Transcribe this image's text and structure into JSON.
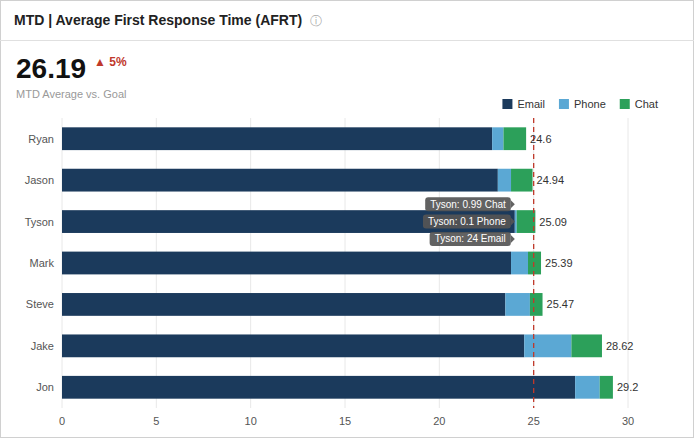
{
  "chart_data": {
    "type": "bar",
    "orientation": "horizontal",
    "stacked": true,
    "title": "MTD | Average First Response Time (AFRT)",
    "title_icon": "ⓘ",
    "kpi_value": "26.19",
    "kpi_change": " ▲ 5%",
    "kpi_change_color": "#c0392b",
    "subtitle": "MTD Average vs. Goal",
    "categories": [
      "Ryan",
      "Jason",
      "Tyson",
      "Mark",
      "Steve",
      "Jake",
      "Jon"
    ],
    "series": [
      {
        "name": "Email",
        "color": "#1b3a5c",
        "values": [
          22.8,
          23.1,
          24.0,
          23.8,
          23.5,
          24.5,
          27.2
        ]
      },
      {
        "name": "Phone",
        "color": "#5ba8d4",
        "values": [
          0.6,
          0.7,
          0.1,
          0.9,
          1.3,
          2.5,
          1.3
        ]
      },
      {
        "name": "Chat",
        "color": "#2ca05a",
        "values": [
          1.2,
          1.14,
          0.99,
          0.69,
          0.67,
          1.62,
          0.7
        ]
      }
    ],
    "totals": [
      24.6,
      24.94,
      25.09,
      25.39,
      25.47,
      28.62,
      29.2
    ],
    "goal_line": {
      "value": 25,
      "color": "#c0392b"
    },
    "annotations": [
      {
        "text": "Tyson: 0.99 Chat",
        "category": "Tyson",
        "series": "Chat"
      },
      {
        "text": "Tyson: 0.1 Phone",
        "category": "Tyson",
        "series": "Phone"
      },
      {
        "text": "Tyson: 24 Email",
        "category": "Tyson",
        "series": "Email"
      }
    ],
    "xlim": [
      0,
      30
    ],
    "xticks": [
      0,
      5,
      10,
      15,
      20,
      25,
      30
    ],
    "grid": true,
    "legend": "upper right"
  }
}
